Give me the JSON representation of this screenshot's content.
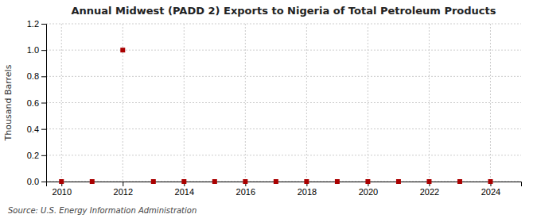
{
  "chart_data": {
    "type": "scatter",
    "title": "Annual Midwest (PADD 2) Exports to Nigeria of Total Petroleum Products",
    "ylabel": "Thousand Barrels",
    "annotations": [
      "Source: U.S. Energy Information Administration"
    ],
    "x": [
      2010,
      2011,
      2012,
      2013,
      2014,
      2015,
      2016,
      2017,
      2018,
      2019,
      2020,
      2021,
      2022,
      2023,
      2024
    ],
    "values": [
      0,
      0,
      1,
      0,
      0,
      0,
      0,
      0,
      0,
      0,
      0,
      0,
      0,
      0,
      0
    ],
    "color": "#aa0000",
    "marker": "square",
    "xlim": [
      2009.5,
      2025
    ],
    "ylim": [
      0,
      1.2
    ],
    "xticks": [
      2010,
      2012,
      2014,
      2016,
      2018,
      2020,
      2022,
      2024
    ],
    "yticks": [
      {
        "value": 0.0,
        "label": "0.0"
      },
      0.2,
      0.4,
      0.6,
      0.8,
      {
        "value": 1.0,
        "label": "1.0"
      },
      1.2
    ],
    "grid": true
  }
}
